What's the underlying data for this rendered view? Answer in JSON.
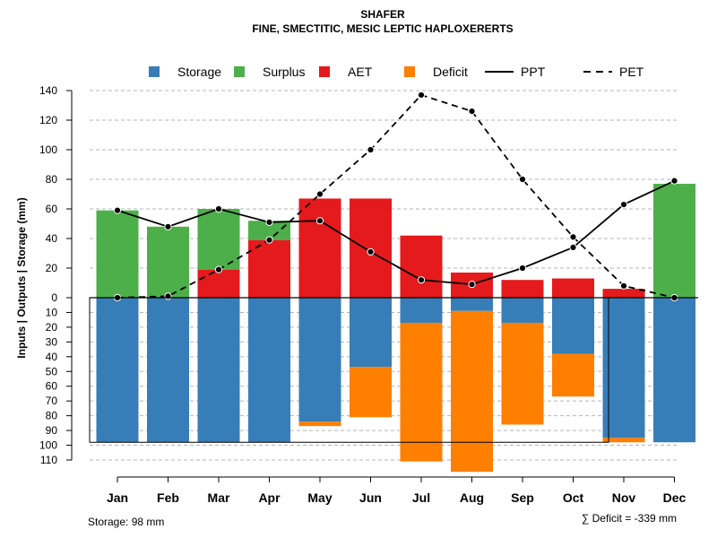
{
  "chart_data": {
    "type": "bar",
    "title": "SHAFER",
    "subtitle": "FINE, SMECTITIC, MESIC LEPTIC HAPLOXERERTS",
    "ylabel": "Inputs | Outputs | Storage    (mm)",
    "categories": [
      "Jan",
      "Feb",
      "Mar",
      "Apr",
      "May",
      "Jun",
      "Jul",
      "Aug",
      "Sep",
      "Oct",
      "Nov",
      "Dec"
    ],
    "ylim_top": [
      0,
      140
    ],
    "ylim_bottom": [
      0,
      110
    ],
    "upper_ticks": [
      "0",
      "20",
      "40",
      "60",
      "80",
      "100",
      "120",
      "140"
    ],
    "upper_tick_values": [
      0,
      20,
      40,
      60,
      80,
      100,
      120,
      140
    ],
    "lower_ticks": [
      "10",
      "20",
      "30",
      "40",
      "50",
      "60",
      "70",
      "80",
      "90",
      "100",
      "110"
    ],
    "lower_tick_values": [
      10,
      20,
      30,
      40,
      50,
      60,
      70,
      80,
      90,
      100,
      110
    ],
    "legend": [
      {
        "label": "Storage",
        "kind": "box",
        "color": "#377EB8"
      },
      {
        "label": "Surplus",
        "kind": "box",
        "color": "#4DAF4A"
      },
      {
        "label": "AET",
        "kind": "box",
        "color": "#E41A1C"
      },
      {
        "label": "Deficit",
        "kind": "box",
        "color": "#FF7F00"
      },
      {
        "label": "PPT",
        "kind": "solid"
      },
      {
        "label": "PET",
        "kind": "dashed"
      }
    ],
    "series": [
      {
        "name": "AET",
        "color": "#E41A1C",
        "values": [
          0,
          0,
          19,
          39,
          67,
          67,
          42,
          17,
          12,
          13,
          6,
          0
        ]
      },
      {
        "name": "Surplus",
        "color": "#4DAF4A",
        "values": [
          59,
          48,
          41,
          13,
          0,
          0,
          0,
          0,
          0,
          0,
          0,
          77
        ]
      },
      {
        "name": "Storage",
        "color": "#377EB8",
        "values": [
          98,
          98,
          98,
          98,
          84,
          47,
          17,
          9,
          17,
          38,
          95,
          98
        ]
      },
      {
        "name": "Deficit",
        "color": "#FF7F00",
        "values": [
          0,
          0,
          0,
          0,
          3,
          34,
          94,
          109,
          69,
          29,
          3,
          0
        ]
      },
      {
        "name": "PPT",
        "values": [
          59,
          48,
          60,
          51,
          52,
          31,
          12,
          9,
          20,
          34,
          63,
          79
        ]
      },
      {
        "name": "PET",
        "values": [
          0,
          1,
          19,
          39,
          70,
          100,
          137,
          126,
          80,
          41,
          8,
          0
        ]
      }
    ],
    "storage_note": "Storage: 98 mm",
    "deficit_note": "∑ Deficit = -339 mm"
  }
}
